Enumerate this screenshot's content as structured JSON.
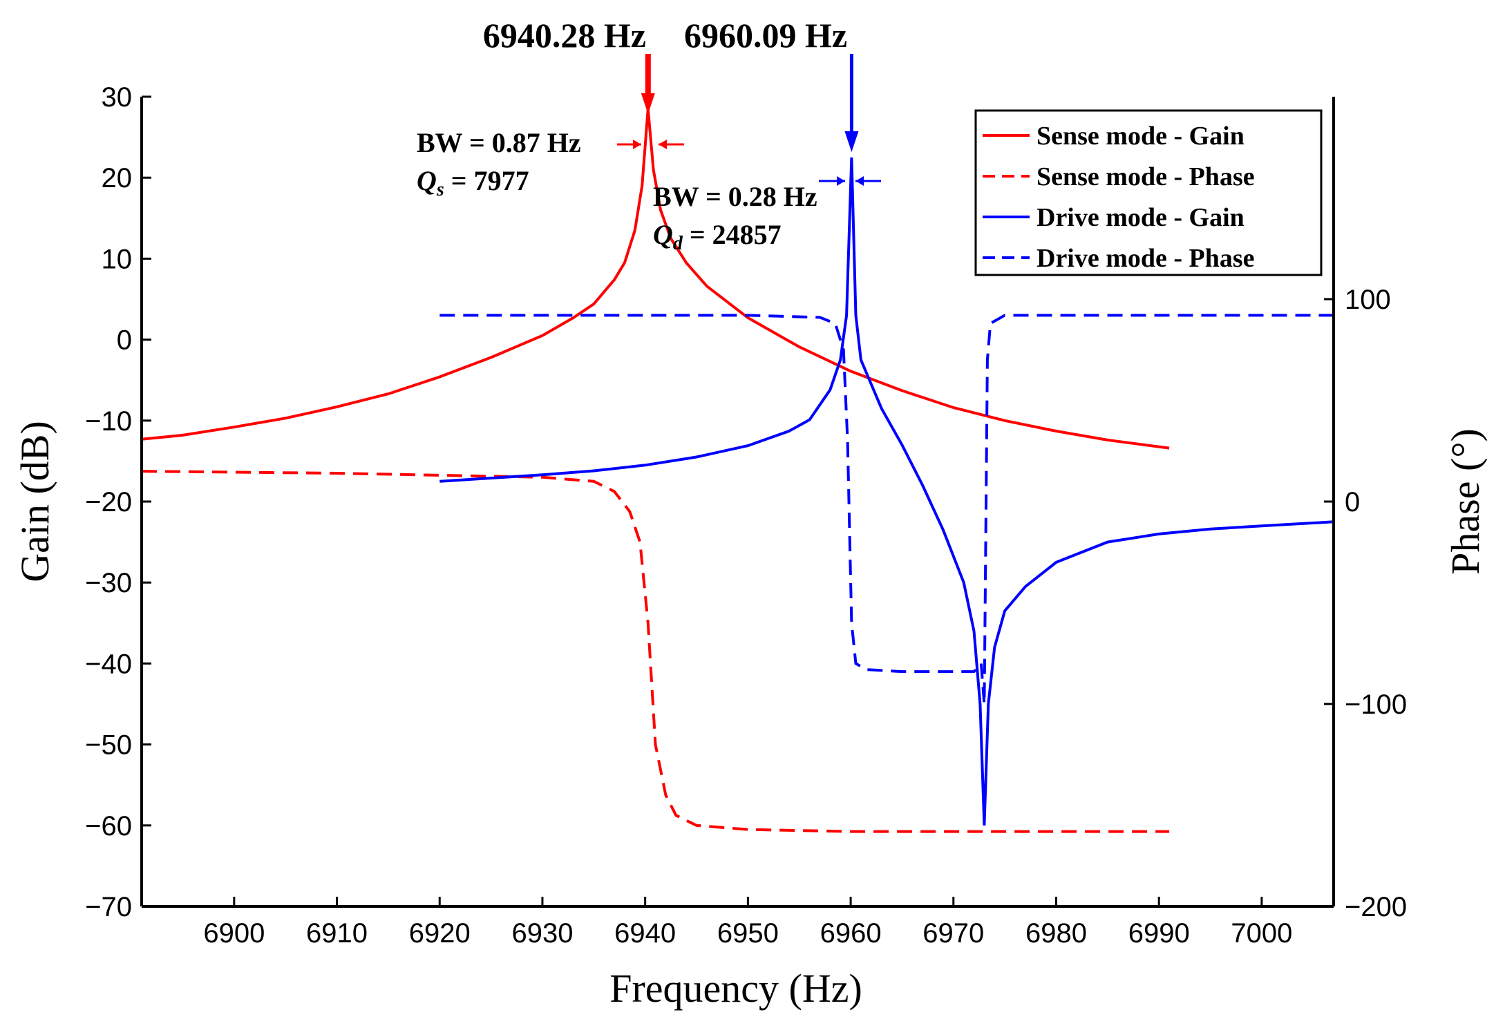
{
  "chart_data": {
    "type": "line",
    "title": "",
    "xlabel": "Frequency (Hz)",
    "ylabel_left": "Gain (dB)",
    "ylabel_right": "Phase (°)",
    "xlim": [
      6891,
      7007
    ],
    "ylim_left": [
      -70,
      30
    ],
    "ylim_right": [
      -200,
      200
    ],
    "x_ticks": [
      "6900",
      "6910",
      "6920",
      "6930",
      "6940",
      "6950",
      "6960",
      "6970",
      "6980",
      "6990",
      "7000"
    ],
    "y_left_ticks": [
      "30",
      "20",
      "10",
      "0",
      "−10",
      "−20",
      "−30",
      "−40",
      "−50",
      "−60",
      "−70"
    ],
    "y_right_ticks": [
      "100",
      "0",
      "−100",
      "−200"
    ],
    "legend_position": "top-right",
    "series": [
      {
        "name": "Sense mode - Gain",
        "axis": "left",
        "color": "#ff0000",
        "dash": "solid",
        "points": [
          [
            6891,
            -12.3
          ],
          [
            6895,
            -11.8
          ],
          [
            6900,
            -10.8
          ],
          [
            6905,
            -9.7
          ],
          [
            6910,
            -8.3
          ],
          [
            6915,
            -6.7
          ],
          [
            6920,
            -4.6
          ],
          [
            6925,
            -2.2
          ],
          [
            6930,
            0.5
          ],
          [
            6933,
            2.7
          ],
          [
            6935,
            4.4
          ],
          [
            6937,
            7.4
          ],
          [
            6938,
            9.5
          ],
          [
            6939,
            13.5
          ],
          [
            6939.7,
            19
          ],
          [
            6940.28,
            28.5
          ],
          [
            6940.8,
            21
          ],
          [
            6941.5,
            16
          ],
          [
            6942.5,
            12.5
          ],
          [
            6944,
            9.5
          ],
          [
            6946,
            6.6
          ],
          [
            6950,
            2.7
          ],
          [
            6955,
            -0.9
          ],
          [
            6960,
            -3.9
          ],
          [
            6965,
            -6.3
          ],
          [
            6970,
            -8.4
          ],
          [
            6975,
            -10
          ],
          [
            6980,
            -11.3
          ],
          [
            6985,
            -12.4
          ],
          [
            6991,
            -13.4
          ]
        ]
      },
      {
        "name": "Sense mode - Phase",
        "axis": "right",
        "color": "#ff0000",
        "dash": "dashed",
        "points": [
          [
            6891,
            15
          ],
          [
            6910,
            14
          ],
          [
            6930,
            12
          ],
          [
            6935,
            10
          ],
          [
            6937,
            5
          ],
          [
            6938.5,
            -5
          ],
          [
            6939.5,
            -20
          ],
          [
            6940.28,
            -60
          ],
          [
            6941,
            -120
          ],
          [
            6942,
            -145
          ],
          [
            6943,
            -155
          ],
          [
            6945,
            -160
          ],
          [
            6950,
            -162
          ],
          [
            6960,
            -163
          ],
          [
            6970,
            -163
          ],
          [
            6980,
            -163
          ],
          [
            6991,
            -163
          ]
        ]
      },
      {
        "name": "Drive mode - Gain",
        "axis": "left",
        "color": "#0000ff",
        "dash": "solid",
        "points": [
          [
            6920,
            -17.5
          ],
          [
            6925,
            -17.1
          ],
          [
            6930,
            -16.7
          ],
          [
            6935,
            -16.2
          ],
          [
            6940,
            -15.5
          ],
          [
            6945,
            -14.5
          ],
          [
            6950,
            -13.1
          ],
          [
            6954,
            -11.3
          ],
          [
            6956,
            -9.9
          ],
          [
            6958,
            -6.2
          ],
          [
            6959,
            -2.5
          ],
          [
            6959.6,
            3
          ],
          [
            6960.09,
            22.5
          ],
          [
            6960.5,
            3
          ],
          [
            6961,
            -2.5
          ],
          [
            6962,
            -5.5
          ],
          [
            6963,
            -8.5
          ],
          [
            6965,
            -13
          ],
          [
            6967,
            -18
          ],
          [
            6969,
            -23.5
          ],
          [
            6971,
            -30
          ],
          [
            6972,
            -36
          ],
          [
            6972.6,
            -45
          ],
          [
            6973,
            -60
          ],
          [
            6973.4,
            -45
          ],
          [
            6974,
            -38
          ],
          [
            6975,
            -33.5
          ],
          [
            6977,
            -30.5
          ],
          [
            6980,
            -27.5
          ],
          [
            6985,
            -25
          ],
          [
            6990,
            -24
          ],
          [
            6995,
            -23.4
          ],
          [
            7000,
            -23
          ],
          [
            7007,
            -22.5
          ]
        ]
      },
      {
        "name": "Drive mode - Phase",
        "axis": "right",
        "color": "#0000ff",
        "dash": "dashed",
        "points": [
          [
            6920,
            92
          ],
          [
            6930,
            92
          ],
          [
            6940,
            92
          ],
          [
            6950,
            92
          ],
          [
            6957,
            91
          ],
          [
            6958.5,
            88
          ],
          [
            6959.3,
            75
          ],
          [
            6959.7,
            30
          ],
          [
            6960.09,
            -60
          ],
          [
            6960.5,
            -80
          ],
          [
            6961.5,
            -83
          ],
          [
            6965,
            -84
          ],
          [
            6970,
            -84
          ],
          [
            6972,
            -84
          ],
          [
            6972.7,
            -80
          ],
          [
            6973,
            -100
          ],
          [
            6973.3,
            70
          ],
          [
            6973.6,
            88
          ],
          [
            6975,
            92
          ],
          [
            6980,
            92
          ],
          [
            6990,
            92
          ],
          [
            7000,
            92
          ],
          [
            7007,
            92
          ]
        ]
      }
    ],
    "peak_labels": [
      "6940.28 Hz",
      "6960.09 Hz"
    ],
    "peak_freqs": [
      6940.28,
      6960.09
    ],
    "annotations": [
      {
        "bw": "BW = 0.87 Hz",
        "q": "Qs = 7977",
        "q_sym": "Q",
        "q_sub": "s",
        "q_val": " = 7977"
      },
      {
        "bw": "BW = 0.28 Hz",
        "q": "Qd = 24857",
        "q_sym": "Q",
        "q_sub": "d",
        "q_val": " = 24857"
      }
    ],
    "colors": {
      "sense": "#ff0000",
      "drive": "#0000ff",
      "axis": "#000000"
    }
  }
}
